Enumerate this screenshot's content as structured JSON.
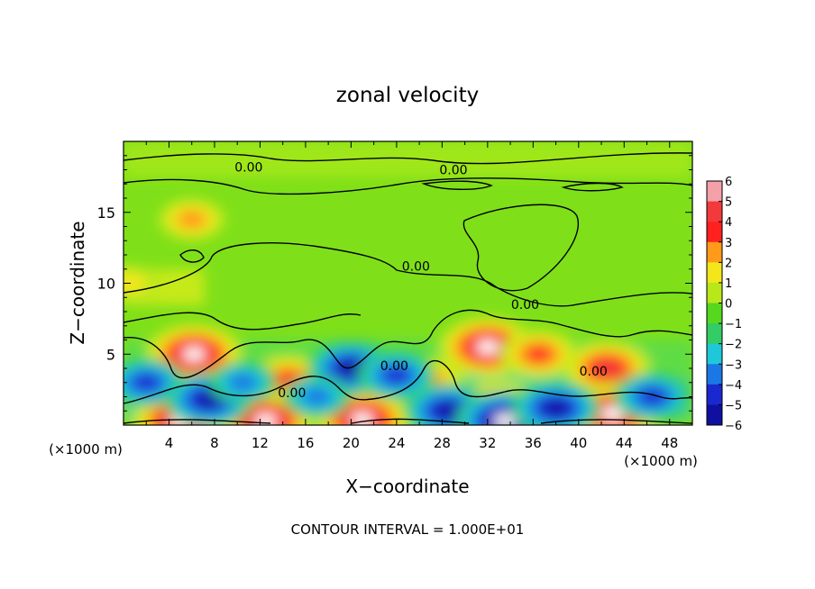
{
  "chart_data": {
    "type": "heatmap",
    "title": "zonal velocity",
    "xlabel": "X−coordinate",
    "ylabel": "Z−coordinate",
    "x_unit_left": "(×1000 m)",
    "x_unit_right": "(×1000 m)",
    "footer": "CONTOUR INTERVAL = 1.000E+01",
    "xlim": [
      0,
      50
    ],
    "ylim": [
      0,
      20
    ],
    "x_ticks": [
      4,
      8,
      12,
      16,
      20,
      24,
      28,
      32,
      36,
      40,
      44,
      48
    ],
    "x_tick_labels": [
      "4",
      "8",
      "12",
      "16",
      "20",
      "24",
      "28",
      "32",
      "36",
      "40",
      "44",
      "48"
    ],
    "y_ticks": [
      5,
      10,
      15
    ],
    "y_tick_labels": [
      "5",
      "10",
      "15"
    ],
    "colorbar": {
      "levels": [
        6,
        5,
        4,
        3,
        2,
        1,
        0,
        -1,
        -2,
        -3,
        -4,
        -5,
        -6
      ],
      "labels": [
        "6",
        "5",
        "4",
        "3",
        "2",
        "1",
        "0",
        "−1",
        "−2",
        "−3",
        "−4",
        "−5",
        "−6"
      ],
      "colors": [
        "#f4a0a8",
        "#f23a3c",
        "#ff2020",
        "#ff9a1a",
        "#f3e61a",
        "#b8e81a",
        "#55d81e",
        "#33cc66",
        "#1ec8d8",
        "#1a78e6",
        "#1a28d0",
        "#1010a0",
        "#6a0aa0"
      ]
    },
    "contour_labels": [
      {
        "text": "0.00",
        "x": 11,
        "z": 18.2
      },
      {
        "text": "0.00",
        "x": 29,
        "z": 18.0
      },
      {
        "text": "0.00",
        "x": 25.7,
        "z": 11.2
      },
      {
        "text": "0.00",
        "x": 35.3,
        "z": 8.5
      },
      {
        "text": "0.00",
        "x": 14.8,
        "z": 2.3
      },
      {
        "text": "0.00",
        "x": 23.8,
        "z": 4.2
      },
      {
        "text": "0.00",
        "x": 41.3,
        "z": 3.8
      }
    ],
    "features": [
      {
        "kind": "max",
        "x": 6.2,
        "z": 5.0,
        "value": 6
      },
      {
        "kind": "max",
        "x": 32.0,
        "z": 5.5,
        "value": 6
      },
      {
        "kind": "max",
        "x": 42.5,
        "z": 4.0,
        "value": 5
      },
      {
        "kind": "max",
        "x": 21.0,
        "z": 0.4,
        "value": 6
      },
      {
        "kind": "max",
        "x": 5.0,
        "z": 0.3,
        "value": 6
      },
      {
        "kind": "max",
        "x": 12.5,
        "z": 0.3,
        "value": 6
      },
      {
        "kind": "max",
        "x": 33.0,
        "z": 1.0,
        "value": 6
      },
      {
        "kind": "max",
        "x": 43.0,
        "z": 0.8,
        "value": 6
      },
      {
        "kind": "max",
        "x": 14.5,
        "z": 3.2,
        "value": 4
      },
      {
        "kind": "max",
        "x": 27.0,
        "z": 3.2,
        "value": 3
      },
      {
        "kind": "max",
        "x": 36.5,
        "z": 5.0,
        "value": 4
      },
      {
        "kind": "max",
        "x": 6.0,
        "z": 14.5,
        "value": 3
      },
      {
        "kind": "max",
        "x": 0.5,
        "z": 10.0,
        "value": 2
      },
      {
        "kind": "min",
        "x": 2.0,
        "z": 3.0,
        "value": -4
      },
      {
        "kind": "min",
        "x": 7.5,
        "z": 1.8,
        "value": -5
      },
      {
        "kind": "min",
        "x": 20.0,
        "z": 4.0,
        "value": -5
      },
      {
        "kind": "min",
        "x": 28.5,
        "z": 1.0,
        "value": -5
      },
      {
        "kind": "min",
        "x": 33.5,
        "z": 0.3,
        "value": -6
      },
      {
        "kind": "min",
        "x": 38.0,
        "z": 1.2,
        "value": -5
      },
      {
        "kind": "min",
        "x": 46.5,
        "z": 2.0,
        "value": -4
      },
      {
        "kind": "min",
        "x": 24.0,
        "z": 3.5,
        "value": -4
      },
      {
        "kind": "min",
        "x": 17.0,
        "z": 2.0,
        "value": -3
      },
      {
        "kind": "min",
        "x": 10.5,
        "z": 3.0,
        "value": -3
      }
    ]
  }
}
